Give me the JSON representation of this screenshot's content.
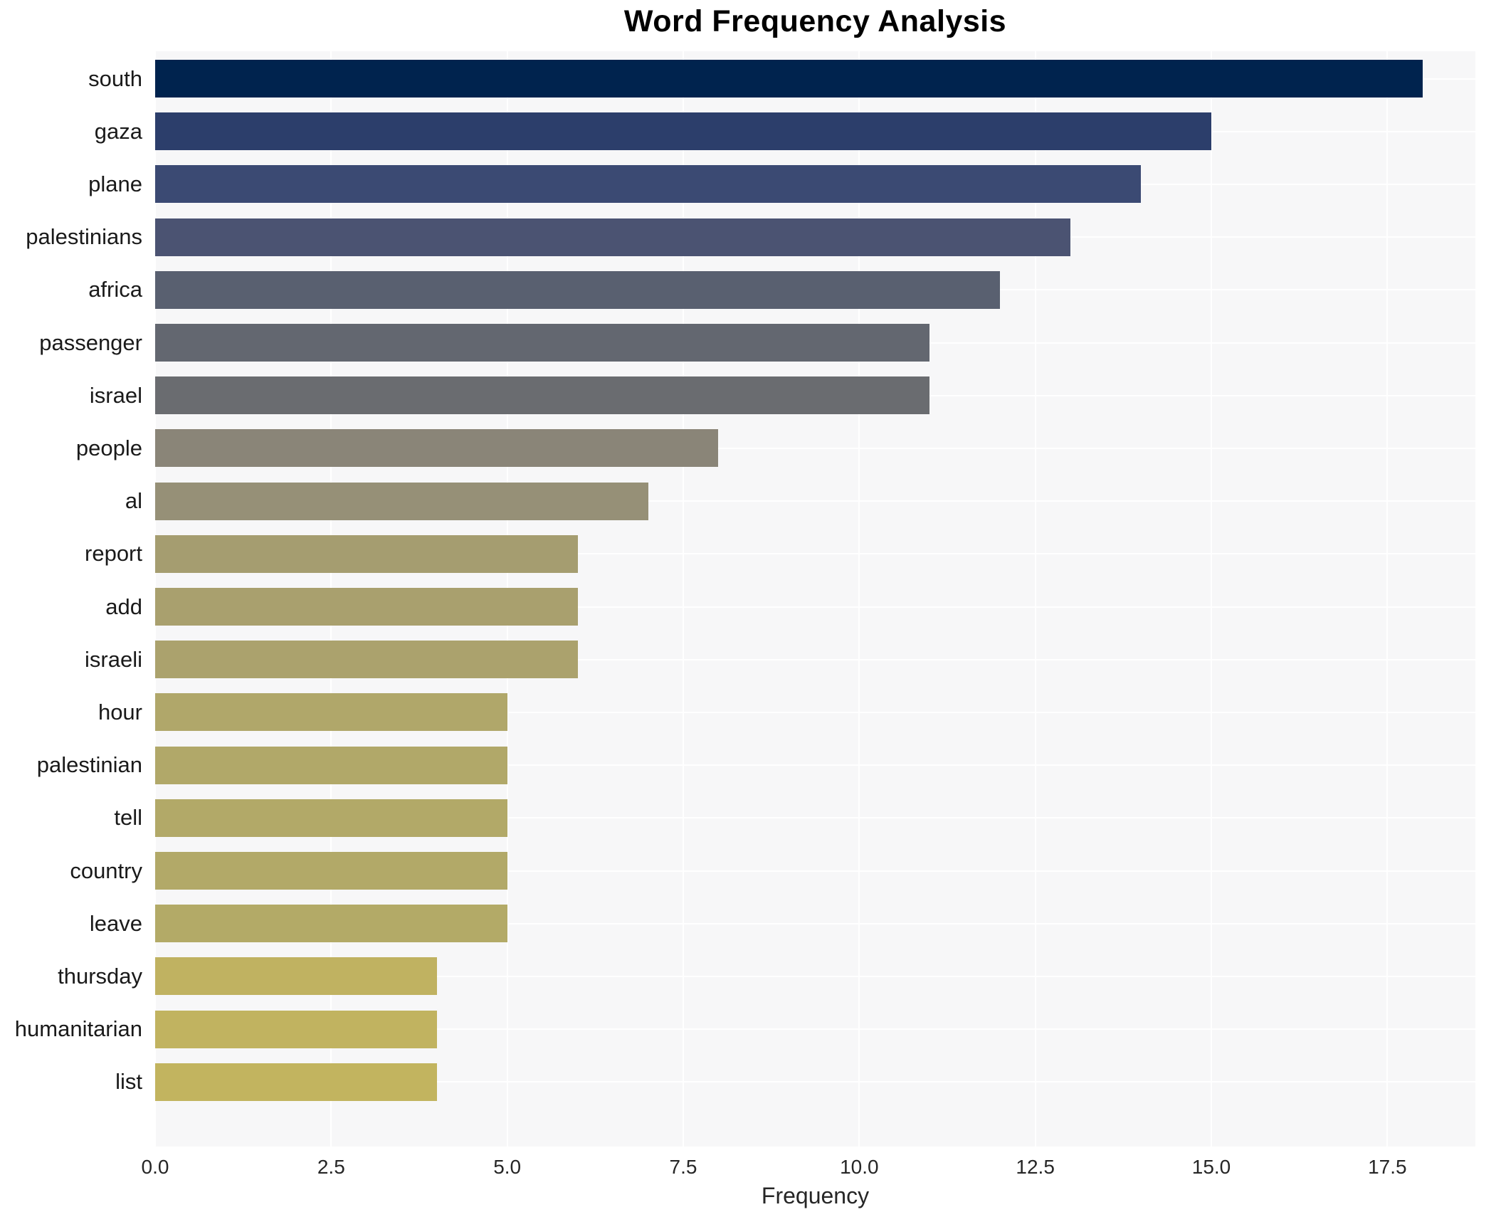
{
  "title": "Word Frequency Analysis",
  "xlabel": "Frequency",
  "chart_data": {
    "type": "bar",
    "orientation": "horizontal",
    "title": "Word Frequency Analysis",
    "xlabel": "Frequency",
    "ylabel": "",
    "categories": [
      "south",
      "gaza",
      "plane",
      "palestinians",
      "africa",
      "passenger",
      "israel",
      "people",
      "al",
      "report",
      "add",
      "israeli",
      "hour",
      "palestinian",
      "tell",
      "country",
      "leave",
      "thursday",
      "humanitarian",
      "list"
    ],
    "values": [
      18,
      15,
      14,
      13,
      12,
      11,
      11,
      8,
      7,
      6,
      6,
      6,
      5,
      5,
      5,
      5,
      5,
      4,
      4,
      4
    ],
    "bar_colors": [
      "#00234e",
      "#2c3e6b",
      "#3b4a73",
      "#4b5372",
      "#596070",
      "#636770",
      "#6a6c70",
      "#8a8578",
      "#969077",
      "#a59d70",
      "#a9a06e",
      "#aba26d",
      "#b0a76a",
      "#b1a869",
      "#b2a968",
      "#b2a968",
      "#b3aa67",
      "#c0b261",
      "#c1b360",
      "#c2b45f"
    ],
    "xlim": [
      0,
      18.75
    ],
    "xticks": [
      "0.0",
      "2.5",
      "5.0",
      "7.5",
      "10.0",
      "12.5",
      "15.0",
      "17.5"
    ],
    "xtick_values": [
      0,
      2.5,
      5,
      7.5,
      10,
      12.5,
      15,
      17.5
    ],
    "grid": true,
    "grid_color": "#ffffff",
    "plot_bg": "#f7f7f8",
    "legend": false
  }
}
